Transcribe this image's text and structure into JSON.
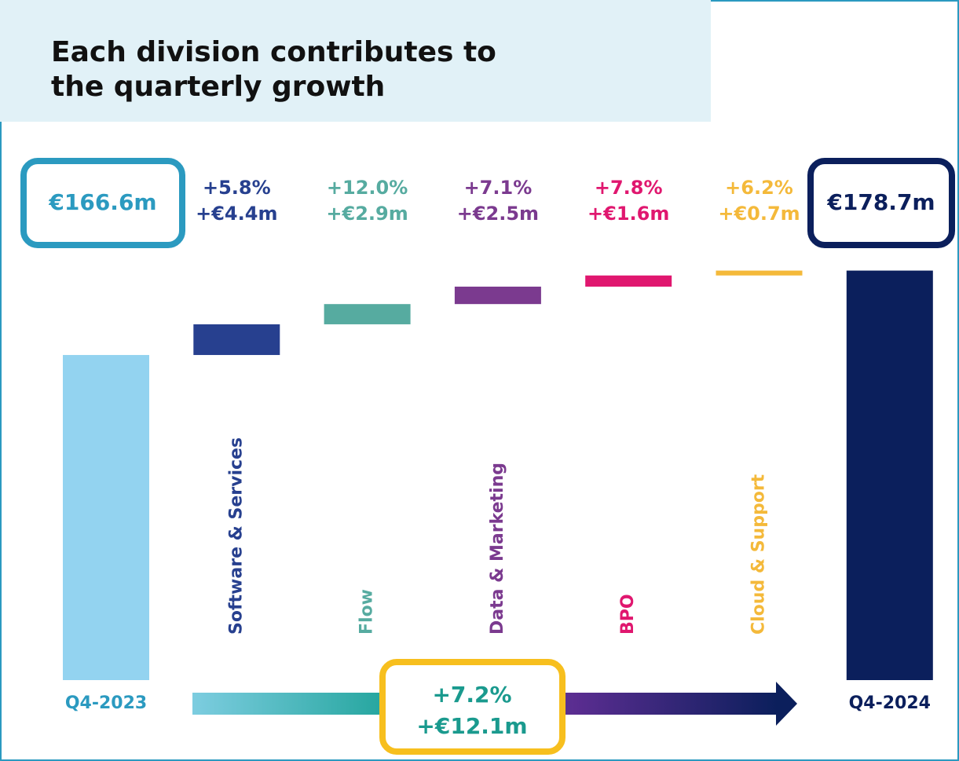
{
  "chart_data": {
    "type": "waterfall",
    "title": [
      "Each division contributes to",
      "the quarterly growth"
    ],
    "ylim": [
      120,
      180
    ],
    "start": {
      "name": "Q4-2023",
      "value": 166.6,
      "value_label": "€166.6m",
      "color": "#93d3f0",
      "label_color": "#2b9ac0"
    },
    "steps": [
      {
        "name": "Software & Services",
        "value": 4.4,
        "value_label": "+€4.4m",
        "growth_label": "+5.8%",
        "color": "#27408f"
      },
      {
        "name": "Flow",
        "value": 2.9,
        "value_label": "+€2.9m",
        "growth_label": "+12.0%",
        "color": "#56aba0"
      },
      {
        "name": "Data & Marketing",
        "value": 2.5,
        "value_label": "+€2.5m",
        "growth_label": "+7.1%",
        "color": "#7b3a8f"
      },
      {
        "name": "BPO",
        "value": 1.6,
        "value_label": "+€1.6m",
        "growth_label": "+7.8%",
        "color": "#e0176f"
      },
      {
        "name": "Cloud & Support",
        "value": 0.7,
        "value_label": "+€0.7m",
        "growth_label": "+6.2%",
        "color": "#f4b93a"
      }
    ],
    "end": {
      "name": "Q4-2024",
      "value": 178.7,
      "value_label": "€178.7m",
      "color": "#0b1f5c",
      "label_color": "#0b1f5c"
    },
    "total_labels": [
      "+7.2%",
      "+€12.1m"
    ],
    "total_color": "#1a9a8e"
  }
}
